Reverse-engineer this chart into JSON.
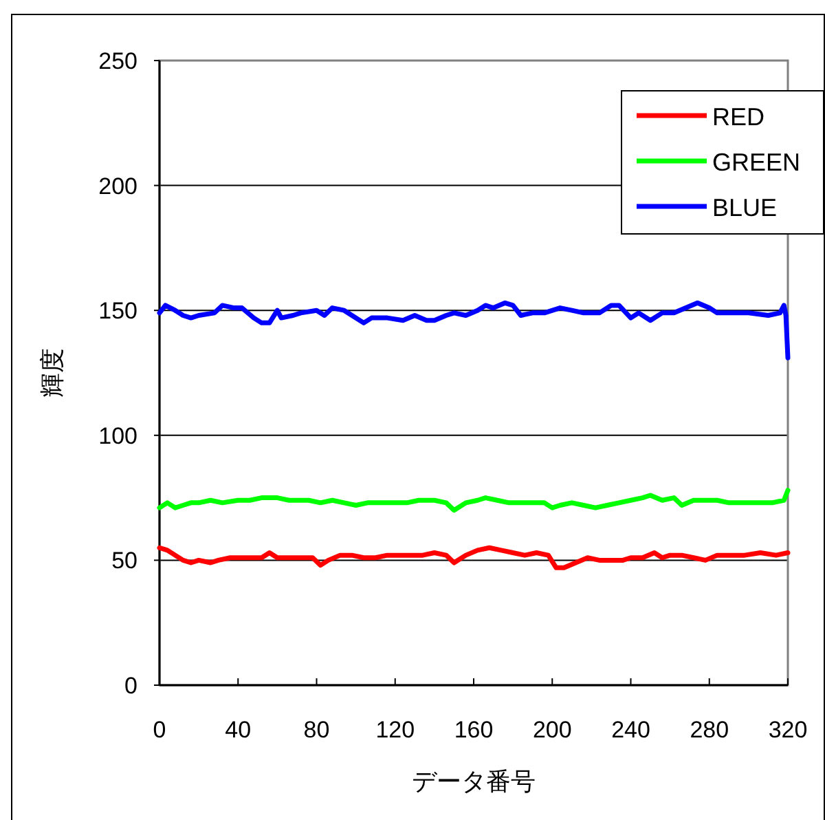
{
  "chart_data": {
    "type": "line",
    "xlabel": "データ番号",
    "ylabel": "輝度",
    "xlim": [
      0,
      320
    ],
    "xticks": [
      0,
      40,
      80,
      120,
      160,
      200,
      240,
      280,
      320
    ],
    "ylim": [
      0,
      250
    ],
    "yticks": [
      0,
      50,
      100,
      150,
      200,
      250
    ],
    "grid": "y",
    "legend": "top right",
    "marker": "none",
    "line_style": "solid",
    "series": [
      {
        "name": "RED",
        "color": "#ff0000",
        "x": [
          0,
          4,
          8,
          12,
          16,
          20,
          26,
          30,
          36,
          40,
          46,
          52,
          56,
          60,
          66,
          72,
          78,
          82,
          86,
          92,
          98,
          104,
          110,
          116,
          122,
          128,
          134,
          140,
          146,
          150,
          156,
          162,
          168,
          174,
          180,
          186,
          192,
          198,
          202,
          206,
          212,
          218,
          224,
          230,
          236,
          240,
          246,
          252,
          256,
          260,
          266,
          272,
          278,
          284,
          290,
          298,
          306,
          314,
          320
        ],
        "values": [
          55,
          54,
          52,
          50,
          49,
          50,
          49,
          50,
          51,
          51,
          51,
          51,
          53,
          51,
          51,
          51,
          51,
          48,
          50,
          52,
          52,
          51,
          51,
          52,
          52,
          52,
          52,
          53,
          52,
          49,
          52,
          54,
          55,
          54,
          53,
          52,
          53,
          52,
          47,
          47,
          49,
          51,
          50,
          50,
          50,
          51,
          51,
          53,
          51,
          52,
          52,
          51,
          50,
          52,
          52,
          52,
          53,
          52,
          53
        ]
      },
      {
        "name": "GREEN",
        "color": "#00ff00",
        "x": [
          0,
          4,
          8,
          12,
          16,
          20,
          26,
          32,
          40,
          46,
          52,
          60,
          66,
          72,
          76,
          82,
          88,
          94,
          100,
          106,
          112,
          120,
          126,
          132,
          140,
          146,
          150,
          156,
          162,
          166,
          172,
          178,
          184,
          190,
          196,
          200,
          204,
          210,
          216,
          222,
          228,
          234,
          240,
          246,
          250,
          256,
          262,
          266,
          272,
          278,
          284,
          290,
          296,
          304,
          312,
          318,
          320
        ],
        "values": [
          71,
          73,
          71,
          72,
          73,
          73,
          74,
          73,
          74,
          74,
          75,
          75,
          74,
          74,
          74,
          73,
          74,
          73,
          72,
          73,
          73,
          73,
          73,
          74,
          74,
          73,
          70,
          73,
          74,
          75,
          74,
          73,
          73,
          73,
          73,
          71,
          72,
          73,
          72,
          71,
          72,
          73,
          74,
          75,
          76,
          74,
          75,
          72,
          74,
          74,
          74,
          73,
          73,
          73,
          73,
          74,
          78
        ]
      },
      {
        "name": "BLUE",
        "color": "#0000ff",
        "x": [
          0,
          3,
          8,
          12,
          16,
          20,
          28,
          32,
          38,
          42,
          48,
          52,
          56,
          60,
          62,
          68,
          72,
          80,
          84,
          88,
          94,
          98,
          104,
          108,
          116,
          124,
          130,
          136,
          140,
          146,
          150,
          156,
          162,
          166,
          170,
          176,
          180,
          184,
          190,
          196,
          204,
          210,
          216,
          224,
          230,
          234,
          240,
          244,
          250,
          256,
          262,
          268,
          274,
          280,
          284,
          290,
          300,
          310,
          316,
          318,
          319,
          320
        ],
        "values": [
          149,
          152,
          150,
          148,
          147,
          148,
          149,
          152,
          151,
          151,
          147,
          145,
          145,
          150,
          147,
          148,
          149,
          150,
          148,
          151,
          150,
          148,
          145,
          147,
          147,
          146,
          148,
          146,
          146,
          148,
          149,
          148,
          150,
          152,
          151,
          153,
          152,
          148,
          149,
          149,
          151,
          150,
          149,
          149,
          152,
          152,
          147,
          149,
          146,
          149,
          149,
          151,
          153,
          151,
          149,
          149,
          149,
          148,
          149,
          152,
          148,
          131
        ]
      }
    ]
  }
}
